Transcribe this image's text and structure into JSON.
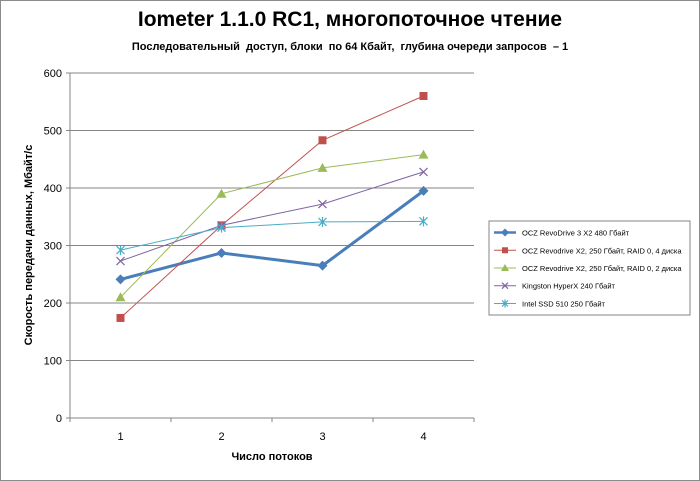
{
  "chart_data": {
    "type": "line",
    "title": "Iometer 1.1.0 RC1, многопоточное чтение",
    "subtitle": "Последовательный  доступ, блоки  по 64 Кбайт,  глубина очереди запросов  – 1",
    "xlabel": "Число  потоков",
    "ylabel": "Скорость передачи данных, Мбайт/с",
    "x": [
      1,
      2,
      3,
      4
    ],
    "ylim": [
      0,
      600
    ],
    "yticks": [
      0,
      100,
      200,
      300,
      400,
      500,
      600
    ],
    "grid": true,
    "legend_position": "right",
    "series": [
      {
        "name": "OCZ RevoDrive 3 X2 480 Гбайт",
        "values": [
          241,
          287,
          265,
          395
        ],
        "color": "#4a7ebb",
        "marker": "diamond",
        "width": 3
      },
      {
        "name": "OCZ Revodrive X2, 250 Гбайт, RAID 0, 4 диска",
        "values": [
          174,
          335,
          483,
          560
        ],
        "color": "#c0504d",
        "marker": "square",
        "width": 1
      },
      {
        "name": "OCZ Revodrive X2, 250 Гбайт, RAID 0, 2 диска",
        "values": [
          210,
          390,
          435,
          458
        ],
        "color": "#9bbb59",
        "marker": "triangle",
        "width": 1
      },
      {
        "name": "Kingston HyperX 240 Гбайт",
        "values": [
          273,
          335,
          372,
          428
        ],
        "color": "#8064a2",
        "marker": "x",
        "width": 1
      },
      {
        "name": "Intel SSD 510 250 Гбайт",
        "values": [
          292,
          331,
          341,
          342
        ],
        "color": "#4bacc6",
        "marker": "asterisk",
        "width": 1
      }
    ]
  }
}
